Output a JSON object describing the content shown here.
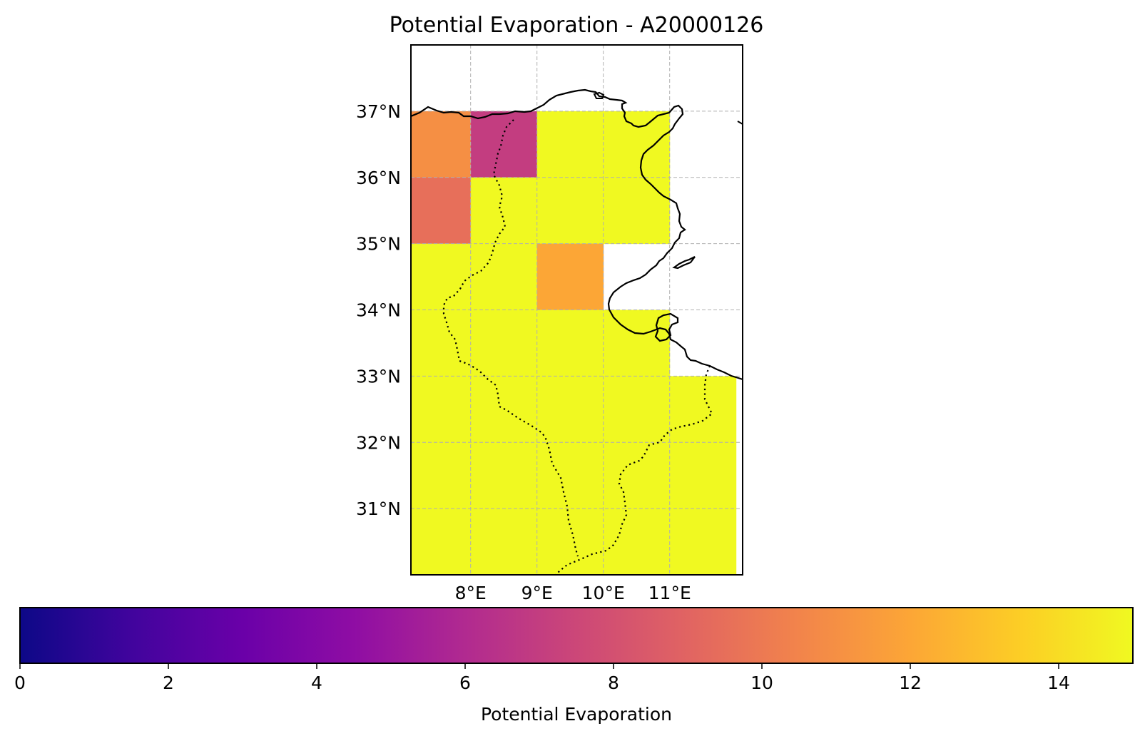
{
  "title": "Potential Evaporation - A20000126",
  "chart_data": {
    "type": "heatmap",
    "title": "Potential Evaporation - A20000126",
    "colormap": "plasma",
    "lon_range": [
      7.1,
      12.1
    ],
    "lat_range": [
      30.0,
      38.0
    ],
    "lon_ticks": [
      8,
      9,
      10,
      11
    ],
    "lon_tick_labels": [
      "8°E",
      "9°E",
      "10°E",
      "11°E"
    ],
    "lat_ticks": [
      31,
      32,
      33,
      34,
      35,
      36,
      37
    ],
    "lat_tick_labels": [
      "31°N",
      "32°N",
      "33°N",
      "34°N",
      "35°N",
      "36°N",
      "37°N"
    ],
    "grid": true,
    "cell_size_deg": 1,
    "cells": [
      {
        "lon": 7,
        "lat": 36,
        "value": 11
      },
      {
        "lon": 8,
        "lat": 36,
        "value": 7
      },
      {
        "lon": 9,
        "lat": 36,
        "value": 15
      },
      {
        "lon": 10,
        "lat": 36,
        "value": 15
      },
      {
        "lon": 7,
        "lat": 35,
        "value": 9.5
      },
      {
        "lon": 8,
        "lat": 35,
        "value": 15
      },
      {
        "lon": 9,
        "lat": 35,
        "value": 15
      },
      {
        "lon": 10,
        "lat": 35,
        "value": 15
      },
      {
        "lon": 7,
        "lat": 34,
        "value": 15
      },
      {
        "lon": 8,
        "lat": 34,
        "value": 15
      },
      {
        "lon": 9,
        "lat": 34,
        "value": 12
      },
      {
        "lon": 7,
        "lat": 33,
        "value": 15
      },
      {
        "lon": 8,
        "lat": 33,
        "value": 15
      },
      {
        "lon": 9,
        "lat": 33,
        "value": 15
      },
      {
        "lon": 10,
        "lat": 33,
        "value": 15
      },
      {
        "lon": 7,
        "lat": 32,
        "value": 15
      },
      {
        "lon": 8,
        "lat": 32,
        "value": 15
      },
      {
        "lon": 9,
        "lat": 32,
        "value": 15
      },
      {
        "lon": 10,
        "lat": 32,
        "value": 15
      },
      {
        "lon": 11,
        "lat": 32,
        "value": 15
      },
      {
        "lon": 7,
        "lat": 31,
        "value": 15
      },
      {
        "lon": 8,
        "lat": 31,
        "value": 15
      },
      {
        "lon": 9,
        "lat": 31,
        "value": 15
      },
      {
        "lon": 10,
        "lat": 31,
        "value": 15
      },
      {
        "lon": 11,
        "lat": 31,
        "value": 15
      },
      {
        "lon": 7,
        "lat": 30,
        "value": 15
      },
      {
        "lon": 8,
        "lat": 30,
        "value": 15
      },
      {
        "lon": 9,
        "lat": 30,
        "value": 15
      },
      {
        "lon": 10,
        "lat": 30,
        "value": 15
      },
      {
        "lon": 11,
        "lat": 30,
        "value": 15
      }
    ],
    "colorbar": {
      "label": "Potential Evaporation",
      "range": [
        0,
        15
      ],
      "ticks": [
        0,
        2,
        4,
        6,
        8,
        10,
        12,
        14
      ],
      "tick_labels": [
        "0",
        "2",
        "4",
        "6",
        "8",
        "10",
        "12",
        "14"
      ],
      "orientation": "horizontal"
    },
    "coastline_color": "#000000",
    "border_style": "dotted",
    "grid_color": "#b0b0b0"
  }
}
